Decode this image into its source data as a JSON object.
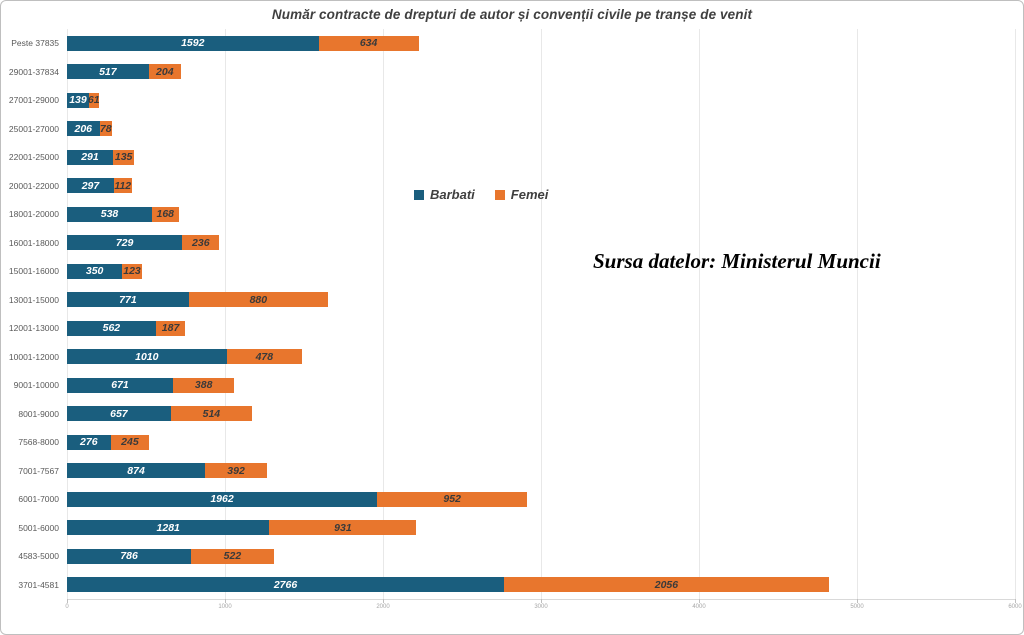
{
  "chart_data": {
    "type": "bar",
    "orientation": "horizontal",
    "stacked": true,
    "title": "Număr contracte de drepturi de autor și convenții civile pe tranșe de venit",
    "annotation": "Sursa datelor: Ministerul Muncii",
    "categories": [
      "Peste 37835",
      "29001-37834",
      "27001-29000",
      "25001-27000",
      "22001-25000",
      "20001-22000",
      "18001-20000",
      "16001-18000",
      "15001-16000",
      "13001-15000",
      "12001-13000",
      "10001-12000",
      "9001-10000",
      "8001-9000",
      "7568-8000",
      "7001-7567",
      "6001-7000",
      "5001-6000",
      "4583-5000",
      "3701-4581"
    ],
    "series": [
      {
        "name": "Barbati",
        "color": "#1a5e7e",
        "values": [
          1592,
          517,
          139,
          206,
          291,
          297,
          538,
          729,
          350,
          771,
          562,
          1010,
          671,
          657,
          276,
          874,
          1962,
          1281,
          786,
          2766
        ]
      },
      {
        "name": "Femei",
        "color": "#e8762d",
        "values": [
          634,
          204,
          61,
          78,
          135,
          112,
          168,
          236,
          123,
          880,
          187,
          478,
          388,
          514,
          245,
          392,
          952,
          931,
          522,
          2056
        ]
      }
    ],
    "x_ticks": [
      0,
      1000,
      2000,
      3000,
      4000,
      5000,
      6000
    ],
    "xlim": [
      0,
      6000
    ],
    "grid": "vertical",
    "legend_position": "center",
    "value_labels": true,
    "colors": {
      "title_text": "#404040",
      "category_text": "#595959",
      "tick_text": "#a6a6a6",
      "gridline": "#e8e8e8",
      "label_on_barbati": "#ffffff",
      "label_on_femei": "#3a3a3a"
    }
  }
}
